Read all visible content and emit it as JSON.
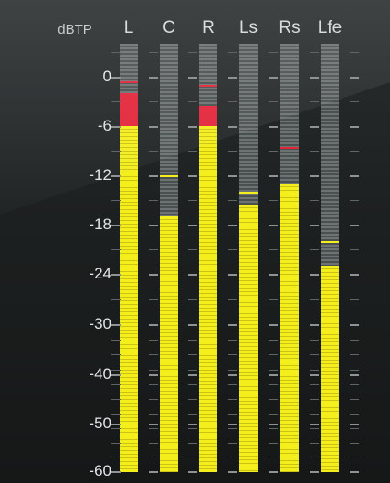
{
  "unit_label": "dBTP",
  "scale_labels": [
    "0",
    "-6",
    "-12",
    "-18",
    "-24",
    "-30",
    "-40",
    "-50",
    "-60"
  ],
  "channels": [
    {
      "name": "L",
      "level_db": -6,
      "over_db": -2,
      "peak_db": -0.5,
      "peak_color": "#e3253a"
    },
    {
      "name": "C",
      "level_db": -17,
      "over_db": null,
      "peak_db": -12,
      "peak_color": "#f3ee1c"
    },
    {
      "name": "R",
      "level_db": -6,
      "over_db": -3.5,
      "peak_db": -1,
      "peak_color": "#e3253a"
    },
    {
      "name": "Ls",
      "level_db": -15.5,
      "over_db": null,
      "peak_db": -14,
      "peak_color": "#f3ee1c"
    },
    {
      "name": "Rs",
      "level_db": -13,
      "over_db": null,
      "peak_db": -8.5,
      "peak_color": "#e3253a"
    },
    {
      "name": "Lfe",
      "level_db": -23,
      "over_db": null,
      "peak_db": -20,
      "peak_color": "#f3ee1c"
    }
  ],
  "colors": {
    "signal": "#f3ee1c",
    "over": "#e3253a",
    "inactive": "#6d7272"
  }
}
